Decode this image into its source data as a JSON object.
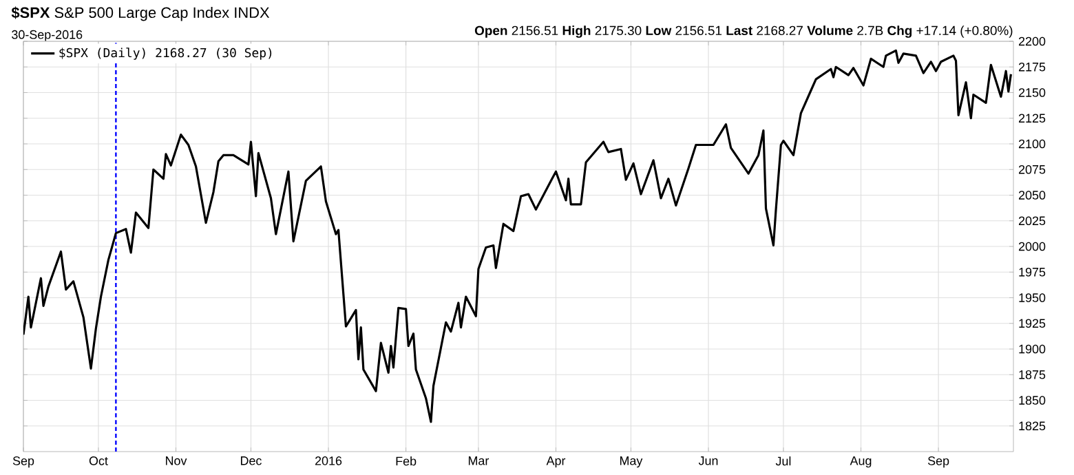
{
  "chart_data": {
    "type": "line",
    "title": "**$SPX** S&P 500 Large Cap Index INDX",
    "annotations": [
      "30-Sep-2016",
      "**Open** 2156.51 **High** 2175.30 **Low** 2156.51 **Last** 2168.27 **Volume** 2.7B **Chg** +17.14 (+0.80%)"
    ],
    "x": [
      "2015-09-01",
      "2015-09-03",
      "2015-09-04",
      "2015-09-08",
      "2015-09-09",
      "2015-09-11",
      "2015-09-16",
      "2015-09-18",
      "2015-09-21",
      "2015-09-25",
      "2015-09-28",
      "2015-09-30",
      "2015-10-02",
      "2015-10-05",
      "2015-10-08",
      "2015-10-12",
      "2015-10-14",
      "2015-10-16",
      "2015-10-21",
      "2015-10-23",
      "2015-10-27",
      "2015-10-28",
      "2015-10-30",
      "2015-11-03",
      "2015-11-06",
      "2015-11-09",
      "2015-11-13",
      "2015-11-16",
      "2015-11-18",
      "2015-11-20",
      "2015-11-24",
      "2015-11-30",
      "2015-12-01",
      "2015-12-03",
      "2015-12-04",
      "2015-12-09",
      "2015-12-11",
      "2015-12-16",
      "2015-12-18",
      "2015-12-23",
      "2015-12-29",
      "2015-12-31",
      "2016-01-04",
      "2016-01-05",
      "2016-01-08",
      "2016-01-12",
      "2016-01-13",
      "2016-01-14",
      "2016-01-15",
      "2016-01-20",
      "2016-01-22",
      "2016-01-25",
      "2016-01-26",
      "2016-01-27",
      "2016-01-29",
      "2016-02-01",
      "2016-02-02",
      "2016-02-04",
      "2016-02-05",
      "2016-02-09",
      "2016-02-11",
      "2016-02-12",
      "2016-02-17",
      "2016-02-19",
      "2016-02-22",
      "2016-02-23",
      "2016-02-25",
      "2016-02-29",
      "2016-03-01",
      "2016-03-04",
      "2016-03-07",
      "2016-03-08",
      "2016-03-11",
      "2016-03-15",
      "2016-03-18",
      "2016-03-21",
      "2016-03-24",
      "2016-03-30",
      "2016-04-01",
      "2016-04-05",
      "2016-04-06",
      "2016-04-07",
      "2016-04-11",
      "2016-04-13",
      "2016-04-20",
      "2016-04-22",
      "2016-04-27",
      "2016-04-29",
      "2016-05-02",
      "2016-05-05",
      "2016-05-10",
      "2016-05-13",
      "2016-05-16",
      "2016-05-19",
      "2016-05-24",
      "2016-05-27",
      "2016-06-03",
      "2016-06-08",
      "2016-06-10",
      "2016-06-17",
      "2016-06-21",
      "2016-06-23",
      "2016-06-24",
      "2016-06-27",
      "2016-06-28",
      "2016-06-30",
      "2016-07-01",
      "2016-07-05",
      "2016-07-08",
      "2016-07-12",
      "2016-07-14",
      "2016-07-20",
      "2016-07-21",
      "2016-07-22",
      "2016-07-27",
      "2016-07-29",
      "2016-08-02",
      "2016-08-05",
      "2016-08-10",
      "2016-08-11",
      "2016-08-15",
      "2016-08-16",
      "2016-08-18",
      "2016-08-23",
      "2016-08-26",
      "2016-08-29",
      "2016-08-31",
      "2016-09-02",
      "2016-09-07",
      "2016-09-08",
      "2016-09-09",
      "2016-09-12",
      "2016-09-14",
      "2016-09-15",
      "2016-09-20",
      "2016-09-22",
      "2016-09-26",
      "2016-09-28",
      "2016-09-29",
      "2016-09-30"
    ],
    "series": [
      {
        "name": "$SPX (Daily) 2168.27 (30 Sep)",
        "color": "#000000",
        "values": [
          1914,
          1951,
          1921,
          1969,
          1942,
          1961,
          1995,
          1958,
          1966,
          1931,
          1881,
          1920,
          1951,
          1987,
          2013,
          2017,
          1994,
          2033,
          2018,
          2075,
          2066,
          2090,
          2079,
          2109,
          2099,
          2078,
          2023,
          2053,
          2083,
          2089,
          2089,
          2080,
          2102,
          2049,
          2091,
          2047,
          2012,
          2073,
          2005,
          2064,
          2078,
          2044,
          2012,
          2016,
          1922,
          1938,
          1890,
          1921,
          1880,
          1859,
          1906,
          1877,
          1903,
          1882,
          1940,
          1939,
          1903,
          1915,
          1880,
          1852,
          1829,
          1864,
          1926,
          1917,
          1945,
          1921,
          1951,
          1932,
          1978,
          1999,
          2001,
          1979,
          2022,
          2015,
          2049,
          2051,
          2036,
          2064,
          2073,
          2045,
          2066,
          2041,
          2041,
          2082,
          2102,
          2092,
          2095,
          2065,
          2081,
          2051,
          2084,
          2047,
          2066,
          2040,
          2076,
          2099,
          2099,
          2119,
          2096,
          2071,
          2089,
          2113,
          2037,
          2001,
          2036,
          2099,
          2103,
          2089,
          2130,
          2152,
          2163,
          2173,
          2165,
          2175,
          2167,
          2174,
          2157,
          2183,
          2175,
          2186,
          2191,
          2179,
          2188,
          2186,
          2169,
          2180,
          2171,
          2180,
          2186,
          2181,
          2128,
          2160,
          2125,
          2148,
          2140,
          2177,
          2146,
          2171,
          2151,
          2168
        ]
      }
    ],
    "xlim": [
      "2015-09-01",
      "2016-10-01"
    ],
    "xticks": [
      {
        "value": "2015-09-01",
        "label": "Sep"
      },
      {
        "value": "2015-10-01",
        "label": "Oct"
      },
      {
        "value": "2015-11-01",
        "label": "Nov"
      },
      {
        "value": "2015-12-01",
        "label": "Dec"
      },
      {
        "value": "2016-01-01",
        "label": "2016"
      },
      {
        "value": "2016-02-01",
        "label": "Feb"
      },
      {
        "value": "2016-03-01",
        "label": "Mar"
      },
      {
        "value": "2016-04-01",
        "label": "Apr"
      },
      {
        "value": "2016-05-01",
        "label": "May"
      },
      {
        "value": "2016-06-01",
        "label": "Jun"
      },
      {
        "value": "2016-07-01",
        "label": "Jul"
      },
      {
        "value": "2016-08-01",
        "label": "Aug"
      },
      {
        "value": "2016-09-01",
        "label": "Sep"
      }
    ],
    "ylim": [
      1800,
      2200
    ],
    "yticks": [
      1825,
      1850,
      1875,
      1900,
      1925,
      1950,
      1975,
      2000,
      2025,
      2050,
      2075,
      2100,
      2125,
      2150,
      2175,
      2200
    ],
    "grid": true,
    "legend": "top left",
    "marker": "none",
    "line_style": "solid",
    "ref_lines": [
      {
        "axis": "x",
        "value": "2015-10-08",
        "color": "#0000ff",
        "line_style": "dashed"
      }
    ]
  }
}
